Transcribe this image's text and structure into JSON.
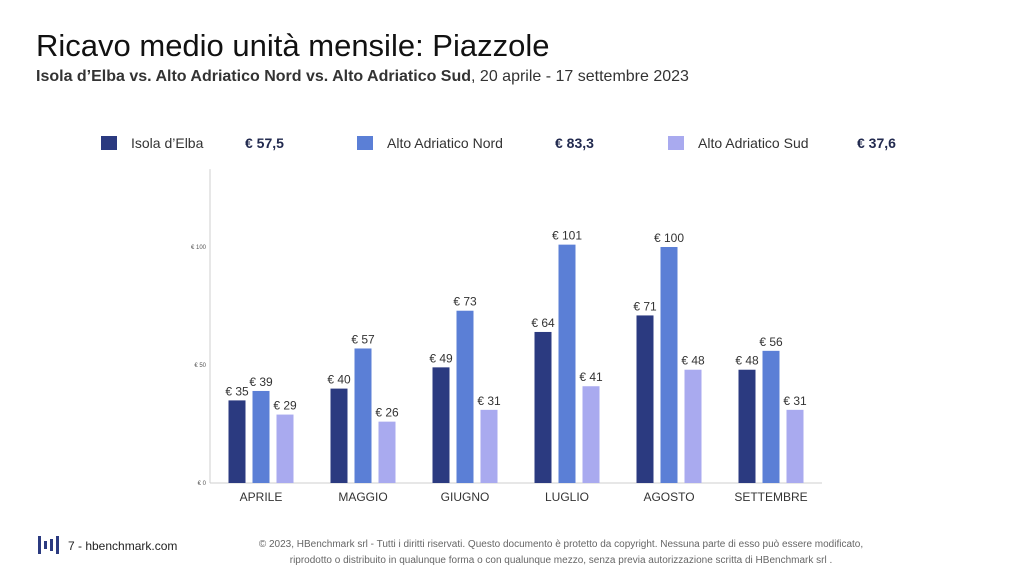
{
  "title": "Ricavo medio unità mensile: Piazzole",
  "subtitle": {
    "bold": "Isola d’Elba vs. Alto Adriatico Nord vs. Alto Adriatico Sud",
    "rest": ", 20 aprile - 17 settembre 2023"
  },
  "legend": [
    {
      "label": "Isola d’Elba",
      "value": "€ 57,5",
      "color": "#2b3a80"
    },
    {
      "label": "Alto Adriatico Nord",
      "value": "€ 83,3",
      "color": "#5b7fd6"
    },
    {
      "label": "Alto Adriatico Sud",
      "value": "€ 37,6",
      "color": "#a9aaef"
    }
  ],
  "chart_data": {
    "type": "bar",
    "categories": [
      "APRILE",
      "MAGGIO",
      "GIUGNO",
      "LUGLIO",
      "AGOSTO",
      "SETTEMBRE"
    ],
    "series": [
      {
        "name": "Isola d’Elba",
        "color": "#2b3a80",
        "values": [
          35,
          40,
          49,
          64,
          71,
          48
        ],
        "labels": [
          "€ 35",
          "€ 40",
          "€ 49",
          "€ 64",
          "€ 71",
          "€ 48"
        ]
      },
      {
        "name": "Alto Adriatico Nord",
        "color": "#5b7fd6",
        "values": [
          39,
          57,
          73,
          101,
          100,
          56
        ],
        "labels": [
          "€ 39",
          "€ 57",
          "€ 73",
          "€ 101",
          "€ 100",
          "€ 56"
        ]
      },
      {
        "name": "Alto Adriatico Sud",
        "color": "#a9aaef",
        "values": [
          29,
          26,
          31,
          41,
          48,
          31
        ],
        "labels": [
          "€ 29",
          "€ 26",
          "€ 31",
          "€ 41",
          "€ 48",
          "€ 31"
        ]
      }
    ],
    "yticks": [
      0,
      50,
      100
    ],
    "ytick_labels": [
      "€ 0",
      "€ 50",
      "€ 100"
    ],
    "ylim": [
      0,
      133
    ],
    "grid": false,
    "legend_position": "top"
  },
  "footer": {
    "page": "7 - hbenchmark.com",
    "copyright_line1": "© 2023, HBenchmark srl - Tutti i diritti riservati. Questo documento è protetto da copyright. Nessuna parte di esso può essere modificato,",
    "copyright_line2": "riprodotto o distribuito in qualunque forma o con qualunque mezzo, senza previa autorizzazione scritta di HBenchmark srl ."
  }
}
